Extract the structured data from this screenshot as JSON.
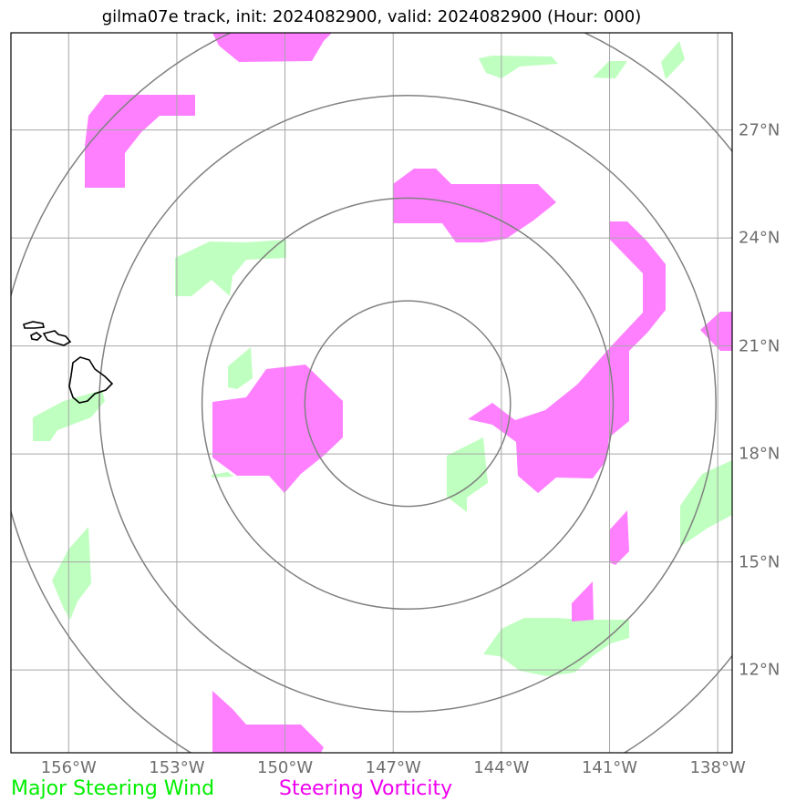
{
  "title": "gilma07e track, init: 2024082900, valid: 2024082900 (Hour: 000)",
  "map": {
    "lon_ticks": [
      {
        "value": -156,
        "label": "156°W"
      },
      {
        "value": -153,
        "label": "153°W"
      },
      {
        "value": -150,
        "label": "150°W"
      },
      {
        "value": -147,
        "label": "147°W"
      },
      {
        "value": -144,
        "label": "144°W"
      },
      {
        "value": -141,
        "label": "141°W"
      },
      {
        "value": -138,
        "label": "138°W"
      }
    ],
    "lat_ticks": [
      {
        "value": 27,
        "label": "27°N"
      },
      {
        "value": 24,
        "label": "24°N"
      },
      {
        "value": 21,
        "label": "21°N"
      },
      {
        "value": 18,
        "label": "18°N"
      },
      {
        "value": 15,
        "label": "15°N"
      },
      {
        "value": 12,
        "label": "12°N"
      }
    ],
    "extent": {
      "lon": [
        -157.6,
        -137.6
      ],
      "lat": [
        9.7,
        29.7
      ]
    },
    "storm_center": {
      "lon": -146.6,
      "lat": 19.4
    },
    "range_rings_deg": [
      2.85,
      5.7,
      8.55,
      11.4
    ],
    "colors": {
      "steering_wind": "#bfffbf",
      "steering_vorticity": "#ff80ff",
      "grid": "#a6a6a6",
      "ring": "#808080",
      "coast": "#000000",
      "tick_label": "#6e6e6e"
    }
  },
  "legend": {
    "wind": {
      "label": "Major Steering Wind",
      "color": "#00ee00"
    },
    "vorticity": {
      "label": "Steering Vorticity",
      "color": "#ee00ee"
    }
  }
}
